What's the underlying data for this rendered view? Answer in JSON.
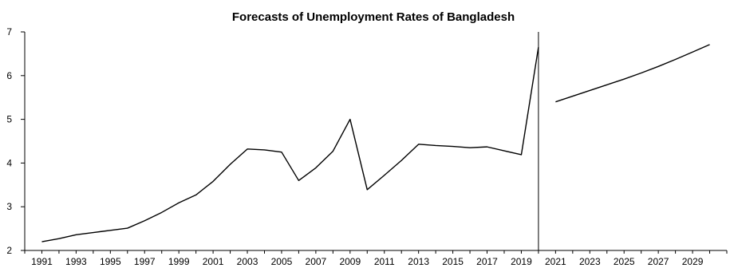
{
  "chart_data": {
    "type": "line",
    "title": "Forecasts of Unemployment Rates of Bangladesh",
    "xlabel": "",
    "ylabel": "",
    "xlim": [
      1990,
      2031
    ],
    "ylim": [
      2,
      7
    ],
    "y_ticks": [
      "2",
      "3",
      "4",
      "5",
      "6",
      "7"
    ],
    "x_ticks": [
      "1991",
      "1993",
      "1995",
      "1997",
      "1999",
      "2001",
      "2003",
      "2005",
      "2007",
      "2009",
      "2011",
      "2013",
      "2015",
      "2017",
      "2019",
      "2021",
      "2023",
      "2025",
      "2027",
      "2029"
    ],
    "forecast_divider_x": 2020,
    "series": [
      {
        "x": [
          1991,
          1992,
          1993,
          1994,
          1995,
          1996,
          1997,
          1998,
          1999,
          2000,
          2001,
          2002,
          2003,
          2004,
          2005,
          2006,
          2007,
          2008,
          2009,
          2010,
          2011,
          2012,
          2013,
          2014,
          2015,
          2016,
          2017,
          2018,
          2019,
          2020
        ],
        "values": [
          2.2,
          2.27,
          2.36,
          2.41,
          2.46,
          2.51,
          2.68,
          2.87,
          3.09,
          3.27,
          3.58,
          3.97,
          4.32,
          4.3,
          4.25,
          3.6,
          3.89,
          4.27,
          5.0,
          3.39,
          3.72,
          4.06,
          4.43,
          4.4,
          4.38,
          4.35,
          4.37,
          4.28,
          4.19,
          6.65
        ]
      },
      {
        "x": [
          2021,
          2022,
          2023,
          2024,
          2025,
          2026,
          2027,
          2028,
          2029,
          2030
        ],
        "values": [
          5.4,
          5.53,
          5.66,
          5.79,
          5.92,
          6.06,
          6.21,
          6.37,
          6.54,
          6.71
        ]
      }
    ]
  }
}
